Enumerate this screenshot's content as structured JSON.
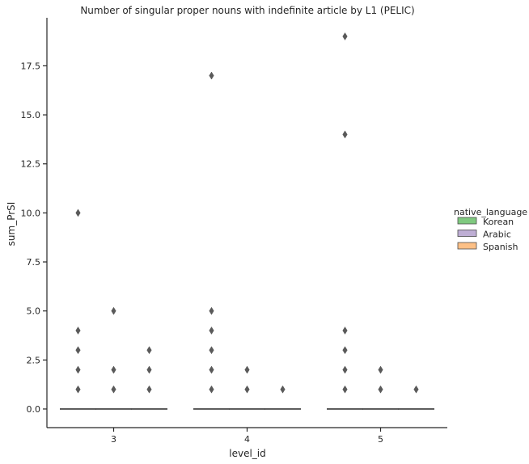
{
  "chart_data": {
    "type": "box",
    "title": "Number of singular proper nouns with indefinite article by L1 (PELIC)",
    "xlabel": "level_id",
    "ylabel": "sum_PrSI",
    "categories": [
      "3",
      "4",
      "5"
    ],
    "ylim": [
      -0.95,
      19.95
    ],
    "yticks": [
      "0.0",
      "2.5",
      "5.0",
      "7.5",
      "10.0",
      "12.5",
      "15.0",
      "17.5"
    ],
    "grid": false,
    "legend": {
      "title": "native_language",
      "placement": "right",
      "entries": [
        "Korean",
        "Arabic",
        "Spanish"
      ]
    },
    "colors": {
      "Korean": "#7fc97f",
      "Arabic": "#beaed4",
      "Spanish": "#fdc086",
      "box_line": "#4d4d4d",
      "flier": "#5a5a5a",
      "axis": "#262626"
    },
    "series": [
      {
        "name": "Korean",
        "boxes": [
          {
            "category": "3",
            "q1": 0,
            "median": 0,
            "q3": 0,
            "whisker_low": 0,
            "whisker_high": 0,
            "fliers": [
              1,
              2,
              3,
              4,
              10
            ]
          },
          {
            "category": "4",
            "q1": 0,
            "median": 0,
            "q3": 0,
            "whisker_low": 0,
            "whisker_high": 0,
            "fliers": [
              1,
              2,
              3,
              4,
              5,
              17
            ]
          },
          {
            "category": "5",
            "q1": 0,
            "median": 0,
            "q3": 0,
            "whisker_low": 0,
            "whisker_high": 0,
            "fliers": [
              1,
              2,
              3,
              4,
              14,
              19
            ]
          }
        ]
      },
      {
        "name": "Arabic",
        "boxes": [
          {
            "category": "3",
            "q1": 0,
            "median": 0,
            "q3": 0,
            "whisker_low": 0,
            "whisker_high": 0,
            "fliers": [
              1,
              2,
              5
            ]
          },
          {
            "category": "4",
            "q1": 0,
            "median": 0,
            "q3": 0,
            "whisker_low": 0,
            "whisker_high": 0,
            "fliers": [
              1,
              2
            ]
          },
          {
            "category": "5",
            "q1": 0,
            "median": 0,
            "q3": 0,
            "whisker_low": 0,
            "whisker_high": 0,
            "fliers": [
              1,
              2
            ]
          }
        ]
      },
      {
        "name": "Spanish",
        "boxes": [
          {
            "category": "3",
            "q1": 0,
            "median": 0,
            "q3": 0,
            "whisker_low": 0,
            "whisker_high": 0,
            "fliers": [
              1,
              2,
              3
            ]
          },
          {
            "category": "4",
            "q1": 0,
            "median": 0,
            "q3": 0,
            "whisker_low": 0,
            "whisker_high": 0,
            "fliers": [
              1
            ]
          },
          {
            "category": "5",
            "q1": 0,
            "median": 0,
            "q3": 0,
            "whisker_low": 0,
            "whisker_high": 0,
            "fliers": [
              1
            ]
          }
        ]
      }
    ]
  }
}
